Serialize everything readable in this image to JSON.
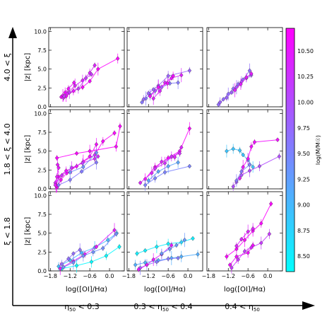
{
  "figure": {
    "row_labels": [
      "4.0 < ξ",
      "1.8 < ξ < 4.0",
      "ξ < 1.8"
    ],
    "col_labels": [
      "η",
      "0.3 < η",
      "0.4 < η"
    ],
    "col_label_parts": [
      {
        "pre": "",
        "sym": "η",
        "sub": "50",
        "post": " < 0.3"
      },
      {
        "pre": "0.3 < ",
        "sym": "η",
        "sub": "50",
        "post": " < 0.4"
      },
      {
        "pre": "0.4 < ",
        "sym": "η",
        "sub": "50",
        "post": ""
      }
    ],
    "xlabel": "log([OI]/Hα)",
    "ylabel": "|z| [kpc]",
    "x_ticks": [
      "−1.8",
      "−1.2",
      "−0.6",
      "0.0"
    ],
    "y_ticks": [
      "0.0",
      "2.5",
      "5.0",
      "7.5",
      "10.0"
    ],
    "colorbar": {
      "label": "log(M/M☉)",
      "ticks": [
        "8.50",
        "8.75",
        "9.00",
        "9.25",
        "9.50",
        "9.75",
        "10.00",
        "10.25",
        "10.50"
      ],
      "range": [
        8.35,
        10.72
      ],
      "colors": [
        "#00ffff",
        "#ff00ff"
      ]
    }
  },
  "chart_data": {
    "type": "scatter",
    "xlim": [
      -1.85,
      0.45
    ],
    "ylim": [
      0,
      10.5
    ],
    "x_ticks": [
      -1.8,
      -1.2,
      -0.6,
      0.0
    ],
    "y_ticks": [
      0,
      2.5,
      5,
      7.5,
      10
    ],
    "panels": [
      {
        "row": 0,
        "col": 0,
        "series": [
          {
            "m": 10.6,
            "x": [
              -1.47,
              -1.42,
              -1.35,
              -1.25,
              -1.08
            ],
            "y": [
              1.3,
              1.5,
              1.9,
              2.4,
              3.2
            ]
          },
          {
            "m": 10.4,
            "x": [
              -1.4,
              -1.28,
              -1.05,
              -0.82,
              -0.6,
              -0.45
            ],
            "y": [
              1.2,
              1.8,
              2.8,
              3.5,
              4.5,
              5.5
            ]
          },
          {
            "m": 10.7,
            "x": [
              -1.32,
              -1.1,
              -0.82,
              -0.6,
              -0.35,
              0.25
            ],
            "y": [
              1.4,
              2.1,
              2.6,
              3.4,
              5.0,
              6.4
            ]
          },
          {
            "m": 10.2,
            "x": [
              -1.38,
              -1.22,
              -0.95,
              -0.72,
              -0.55
            ],
            "y": [
              1.4,
              1.9,
              2.4,
              3.8,
              4.3
            ]
          }
        ]
      },
      {
        "row": 0,
        "col": 1,
        "series": [
          {
            "m": 9.6,
            "x": [
              -1.4,
              -1.28,
              -1.15,
              -1.0,
              -0.8,
              -0.55,
              -0.3
            ],
            "y": [
              0.6,
              1.1,
              1.6,
              2.1,
              2.6,
              3.1,
              3.2
            ]
          },
          {
            "m": 9.8,
            "x": [
              -1.35,
              -1.2,
              -1.05,
              -0.9,
              -0.6,
              0.05
            ],
            "y": [
              1.0,
              1.8,
              2.3,
              2.8,
              4.1,
              4.8
            ]
          },
          {
            "m": 10.4,
            "x": [
              -1.05,
              -0.85,
              -0.7,
              -0.5,
              -0.2
            ],
            "y": [
              1.1,
              2.1,
              3.2,
              3.8,
              4.2
            ]
          },
          {
            "m": 10.6,
            "x": [
              -1.15,
              -0.9,
              -0.62,
              -0.45
            ],
            "y": [
              1.4,
              2.6,
              3.1,
              4.1
            ]
          }
        ]
      },
      {
        "row": 0,
        "col": 2,
        "series": [
          {
            "m": 9.7,
            "x": [
              -1.5,
              -1.35,
              -1.2,
              -1.05,
              -0.9,
              -0.75,
              -0.55
            ],
            "y": [
              0.3,
              1.0,
              1.7,
              2.4,
              3.0,
              3.6,
              4.8
            ]
          },
          {
            "m": 9.8,
            "x": [
              -1.45,
              -1.25,
              -1.1,
              -0.95,
              -0.8,
              -0.65,
              -0.5
            ],
            "y": [
              0.6,
              1.2,
              1.9,
              2.6,
              3.3,
              3.8,
              4.2
            ]
          },
          {
            "m": 10.5,
            "x": [
              -1.0,
              -0.82,
              -0.65,
              -0.5
            ],
            "y": [
              2.2,
              3.0,
              3.9,
              4.4
            ]
          }
        ]
      },
      {
        "row": 1,
        "col": 0,
        "series": [
          {
            "m": 10.7,
            "x": [
              -1.6,
              -1.48,
              -1.3,
              -0.8,
              -0.45,
              -0.2,
              0.15
            ],
            "y": [
              0.2,
              1.2,
              2.1,
              3.6,
              4.5,
              6.3,
              7.4
            ]
          },
          {
            "m": 10.6,
            "x": [
              -1.62,
              -1.55,
              -1.32,
              -1.0,
              -0.6,
              -0.4
            ],
            "y": [
              0.4,
              1.6,
              2.4,
              3.0,
              4.3,
              5.9
            ]
          },
          {
            "m": 10.3,
            "x": [
              -1.65,
              -1.45,
              -1.15,
              -0.82,
              -0.45,
              -0.35
            ],
            "y": [
              0.8,
              1.8,
              2.8,
              3.4,
              4.0,
              4.3
            ]
          },
          {
            "m": 9.6,
            "x": [
              -1.55,
              -1.2,
              -0.85,
              -0.4
            ],
            "y": [
              0.5,
              1.2,
              2.3,
              3.5
            ]
          },
          {
            "m": 9.4,
            "x": [
              -1.2,
              -0.8,
              -0.4
            ],
            "y": [
              2.2,
              2.9,
              4.8
            ]
          },
          {
            "m": 10.7,
            "x": [
              -1.6,
              -1.0,
              -0.6,
              0.2,
              0.32
            ],
            "y": [
              4.1,
              4.7,
              5.0,
              5.6,
              8.3
            ]
          },
          {
            "m": 10.5,
            "x": [
              -1.65,
              -1.6,
              -1.55,
              -1.58
            ],
            "y": [
              0.5,
              1.6,
              2.8,
              3.2
            ]
          }
        ]
      },
      {
        "row": 1,
        "col": 1,
        "series": [
          {
            "m": 10.7,
            "x": [
              -1.3,
              -1.0,
              -0.6,
              -0.25,
              0.05
            ],
            "y": [
              1.3,
              2.9,
              4.1,
              5.0,
              8.0
            ]
          },
          {
            "m": 10.4,
            "x": [
              -1.45,
              -1.1,
              -0.8,
              -0.4,
              -0.2
            ],
            "y": [
              0.8,
              2.1,
              3.6,
              4.2,
              5.5
            ]
          },
          {
            "m": 9.2,
            "x": [
              -1.2,
              -0.9,
              -0.6,
              -0.3
            ],
            "y": [
              1.1,
              2.3,
              3.0,
              3.5
            ]
          },
          {
            "m": 9.5,
            "x": [
              -1.3,
              -1.0,
              -0.7,
              0.05
            ],
            "y": [
              0.5,
              1.4,
              2.2,
              3.0
            ]
          },
          {
            "m": 10.3,
            "x": [
              -1.0,
              -0.7,
              -0.5,
              -0.25
            ],
            "y": [
              2.7,
              3.4,
              4.3,
              4.7
            ]
          }
        ]
      },
      {
        "row": 1,
        "col": 2,
        "series": [
          {
            "m": 8.9,
            "x": [
              -1.25,
              -1.05,
              -0.85,
              -0.75,
              -0.6,
              -0.45
            ],
            "y": [
              5.0,
              5.3,
              5.1,
              4.5,
              3.8,
              2.9
            ]
          },
          {
            "m": 10.6,
            "x": [
              -0.85,
              -0.75,
              -0.6,
              -0.5,
              -0.4,
              0.3
            ],
            "y": [
              1.4,
              2.9,
              4.0,
              5.6,
              6.2,
              6.5
            ]
          },
          {
            "m": 10.0,
            "x": [
              -1.05,
              -0.95,
              -0.8,
              -0.55,
              -0.25,
              0.35
            ],
            "y": [
              0.3,
              0.9,
              1.8,
              2.4,
              3.0,
              4.3
            ]
          },
          {
            "m": 9.6,
            "x": [
              -0.95,
              -0.8,
              -0.55
            ],
            "y": [
              1.1,
              2.3,
              3.2
            ]
          }
        ]
      },
      {
        "row": 2,
        "col": 0,
        "series": [
          {
            "m": 8.4,
            "x": [
              -1.45,
              -1.0,
              -0.55,
              -0.1,
              0.3
            ],
            "y": [
              0.3,
              0.7,
              1.2,
              2.0,
              3.2
            ]
          },
          {
            "m": 9.0,
            "x": [
              -1.55,
              -1.2,
              -0.85,
              -0.45,
              -0.05,
              0.22
            ],
            "y": [
              0.6,
              1.4,
              2.4,
              3.1,
              4.1,
              5.0
            ]
          },
          {
            "m": 10.5,
            "x": [
              -1.5,
              -1.1,
              -0.75,
              -0.4,
              0.15
            ],
            "y": [
              0.3,
              1.3,
              2.2,
              3.2,
              5.4
            ]
          },
          {
            "m": 9.4,
            "x": [
              -1.4,
              -1.1,
              -0.8,
              -0.5,
              -0.2,
              0.2
            ],
            "y": [
              0.5,
              1.1,
              2.0,
              2.5,
              3.0,
              4.9
            ]
          },
          {
            "m": 9.7,
            "x": [
              -1.45,
              -1.25,
              -1.1,
              -0.9
            ],
            "y": [
              0.9,
              1.6,
              2.3,
              2.8
            ]
          }
        ]
      },
      {
        "row": 2,
        "col": 1,
        "series": [
          {
            "m": 8.5,
            "x": [
              -1.55,
              -1.3,
              -0.95,
              -0.6,
              -0.2,
              0.15
            ],
            "y": [
              2.3,
              2.7,
              3.2,
              3.6,
              3.8,
              4.3
            ]
          },
          {
            "m": 9.1,
            "x": [
              -1.6,
              -1.3,
              -0.9,
              -0.5,
              -0.2,
              0.3
            ],
            "y": [
              0.8,
              1.1,
              1.4,
              1.7,
              1.9,
              2.2
            ]
          },
          {
            "m": 9.6,
            "x": [
              -1.45,
              -1.25,
              -0.95,
              -0.6,
              -0.3
            ],
            "y": [
              0.4,
              0.8,
              1.2,
              1.6,
              1.7
            ]
          },
          {
            "m": 10.5,
            "x": [
              -1.5,
              -1.25,
              -1.05,
              -0.8,
              -0.5
            ],
            "y": [
              0.2,
              0.8,
              1.5,
              2.2,
              3.4
            ]
          },
          {
            "m": 9.3,
            "x": [
              -0.8,
              -0.55,
              -0.35,
              -0.1
            ],
            "y": [
              2.3,
              2.9,
              3.4,
              4.1
            ]
          }
        ]
      },
      {
        "row": 2,
        "col": 2,
        "series": [
          {
            "m": 10.7,
            "x": [
              -1.25,
              -0.95,
              -0.7,
              -0.45,
              -0.2,
              0.1
            ],
            "y": [
              1.9,
              2.9,
              4.1,
              5.3,
              6.3,
              8.9
            ]
          },
          {
            "m": 10.2,
            "x": [
              -1.1,
              -0.9,
              -0.7,
              -0.5,
              -0.2,
              0.05
            ],
            "y": [
              0.4,
              1.5,
              2.6,
              3.1,
              3.7,
              4.9
            ]
          },
          {
            "m": 10.6,
            "x": [
              -1.15,
              -0.95,
              -0.6,
              -0.45
            ],
            "y": [
              0.8,
              1.9,
              2.4,
              3.4
            ]
          },
          {
            "m": 10.4,
            "x": [
              -0.95,
              -0.8,
              -0.6,
              -0.45
            ],
            "y": [
              3.3,
              4.2,
              5.2,
              5.6
            ]
          }
        ]
      }
    ]
  }
}
